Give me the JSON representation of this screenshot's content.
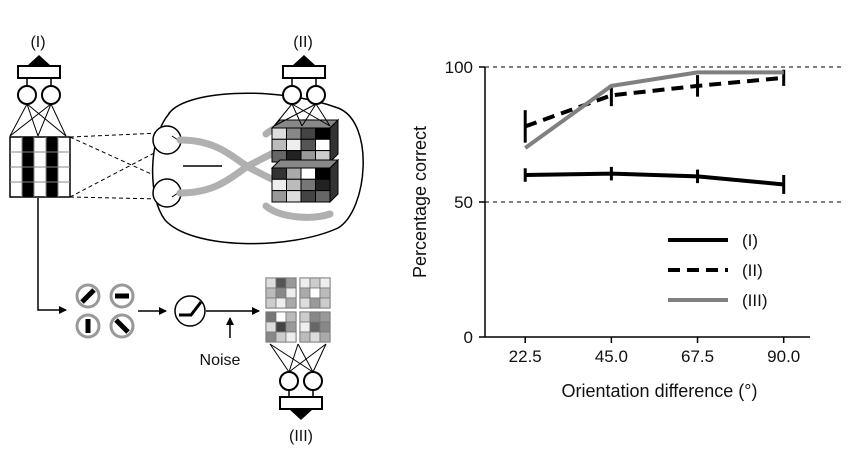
{
  "schematic": {
    "label_i": "(I)",
    "label_ii": "(II)",
    "label_iii": "(III)",
    "noise_label": "Noise"
  },
  "chart_data": {
    "type": "line",
    "title": "",
    "xlabel": "Orientation difference (°)",
    "ylabel": "Percentage correct",
    "x": [
      22.5,
      45.0,
      67.5,
      90.0
    ],
    "x_tick_labels": [
      "22.5",
      "45.0",
      "67.5",
      "90.0"
    ],
    "xlim": [
      12,
      100
    ],
    "ylim": [
      0,
      100
    ],
    "y_ticks": [
      0,
      50,
      100
    ],
    "y_tick_labels": [
      "0",
      "50",
      "100"
    ],
    "reference_lines": [
      50,
      100
    ],
    "legend_position": "bottom-right",
    "series": [
      {
        "name": "(I)",
        "style": "solid",
        "color": "#000000",
        "values": [
          60,
          60.5,
          59.5,
          56.5
        ],
        "errors": [
          2.5,
          2.5,
          2.5,
          3.5
        ]
      },
      {
        "name": "(II)",
        "style": "dashed",
        "color": "#000000",
        "values": [
          78,
          89.5,
          93,
          96
        ],
        "errors": [
          6,
          4,
          4,
          3
        ]
      },
      {
        "name": "(III)",
        "style": "solid",
        "color": "#808080",
        "values": [
          70,
          93,
          98,
          98
        ],
        "errors": [
          0,
          0,
          0,
          0
        ]
      }
    ]
  }
}
